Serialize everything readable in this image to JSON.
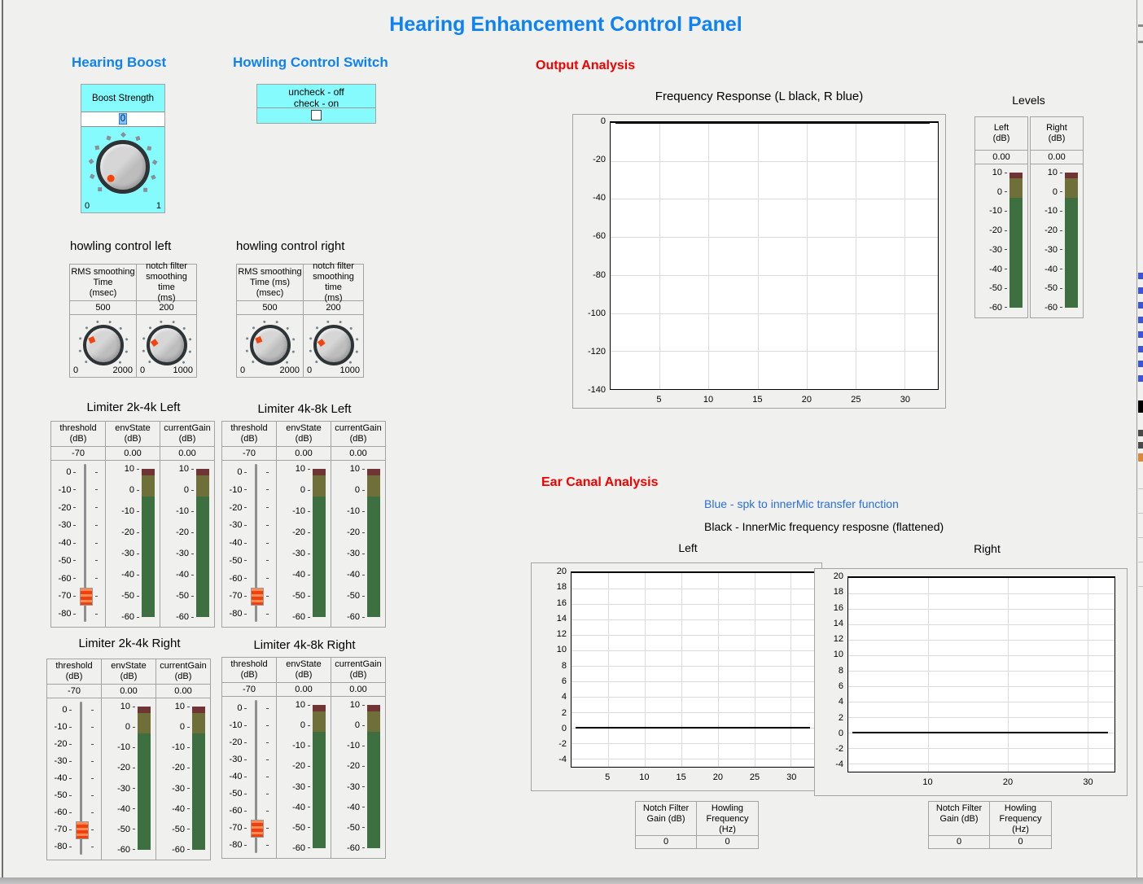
{
  "window": {
    "title": "Hearing Enhancement Control Panel"
  },
  "colors": {
    "accent_blue": "#0f82f2",
    "section_red": "#f00000",
    "panel_cyan": "#86fbfd",
    "meter_red": "#713434",
    "meter_olive": "#6f6f39",
    "meter_green": "#3e6f40"
  },
  "hearing_boost": {
    "header": "Hearing Boost",
    "label": "Boost Strength",
    "value": "0",
    "min_label": "0",
    "max_label": "1",
    "knob": {
      "value": 0,
      "min": 0,
      "max": 1,
      "ticks": 11
    }
  },
  "howling_switch": {
    "header": "Howling Control Switch",
    "caption": "uncheck - off\ncheck - on",
    "checked": false
  },
  "howling_control_left": {
    "title": "howling control left",
    "rms": {
      "label": "RMS smoothing\nTime\n(msec)",
      "value": "500",
      "min_label": "0",
      "max_label": "2000",
      "knob": {
        "value": 500,
        "min": 0,
        "max": 2000,
        "ticks": 10
      }
    },
    "notch": {
      "label": "notch filter\nsmoothing time\n(ms)",
      "value": "200",
      "min_label": "0",
      "max_label": "1000",
      "knob": {
        "value": 200,
        "min": 0,
        "max": 1000,
        "ticks": 10
      }
    }
  },
  "howling_control_right": {
    "title": "howling control right",
    "rms": {
      "label": "RMS smoothing\nTime (ms)\n(msec)",
      "value": "500",
      "min_label": "0",
      "max_label": "2000",
      "knob": {
        "value": 500,
        "min": 0,
        "max": 2000,
        "ticks": 10
      }
    },
    "notch": {
      "label": "notch filter\nsmoothing time\n(ms)",
      "value": "200",
      "min_label": "0",
      "max_label": "1000",
      "knob": {
        "value": 200,
        "min": 0,
        "max": 1000,
        "ticks": 10
      }
    }
  },
  "limiter_labels": {
    "threshold": "threshold\n(dB)",
    "envState": "envState\n(dB)",
    "currentGain": "currentGain\n(dB)"
  },
  "limiters": [
    {
      "title": "Limiter 2k-4k Left",
      "threshold": "-70",
      "envState": "0.00",
      "currentGain": "0.00"
    },
    {
      "title": "Limiter 4k-8k Left",
      "threshold": "-70",
      "envState": "0.00",
      "currentGain": "0.00"
    },
    {
      "title": "Limiter 2k-4k Right",
      "threshold": "-70",
      "envState": "0.00",
      "currentGain": "0.00"
    },
    {
      "title": "Limiter 4k-8k Right",
      "threshold": "-70",
      "envState": "0.00",
      "currentGain": "0.00"
    }
  ],
  "slider": {
    "value": -70,
    "min": -80,
    "max": 0
  },
  "slider_scale": [
    0,
    -10,
    -20,
    -30,
    -40,
    -50,
    -60,
    -70,
    -80
  ],
  "meter_scale": [
    10,
    0,
    -10,
    -20,
    -30,
    -40,
    -50,
    -60
  ],
  "meter": {
    "min": -60,
    "max": 10,
    "segments": [
      {
        "from": 10,
        "to": 7,
        "color": "#713434"
      },
      {
        "from": 7,
        "to": -3,
        "color": "#6f6f39"
      },
      {
        "from": -3,
        "to": -60,
        "color": "#3e6f40"
      }
    ]
  },
  "output_analysis": {
    "header": "Output Analysis",
    "chart": {
      "type": "line",
      "title": "Frequency Response (L black, R blue)",
      "ymin": -140,
      "ymax": 0,
      "yticks": [
        0,
        -20,
        -40,
        -60,
        -80,
        -100,
        -120,
        -140
      ],
      "xmin": 0,
      "xmax": 33.4,
      "xticks": [
        5,
        10,
        15,
        20,
        25,
        30
      ],
      "line_y": 0,
      "grid": true
    }
  },
  "levels": {
    "title": "Levels",
    "left": {
      "label": "Left\n(dB)",
      "value": "0.00"
    },
    "right": {
      "label": "Right\n(dB)",
      "value": "0.00"
    }
  },
  "ear_canal": {
    "header": "Ear Canal Analysis",
    "legend_blue": "Blue - spk to innerMic transfer function",
    "legend_black": "Black - InnerMic frequency resposne (flattened)",
    "left_chart": {
      "type": "line",
      "title": "Left",
      "ymin": -5,
      "ymax": 20,
      "yticks": [
        20,
        18,
        16,
        14,
        12,
        10,
        8,
        6,
        4,
        2,
        0,
        -2,
        -4
      ],
      "xmin": 0,
      "xmax": 33.4,
      "xticks": [
        5,
        10,
        15,
        20,
        25,
        30
      ],
      "line_y": 0,
      "grid": true
    },
    "right_chart": {
      "type": "line",
      "title": "Right",
      "ymin": -5,
      "ymax": 20,
      "yticks": [
        20,
        18,
        16,
        14,
        12,
        10,
        8,
        6,
        4,
        2,
        0,
        -2,
        -4
      ],
      "xmin": 0,
      "xmax": 33.4,
      "xticks": [
        10,
        20,
        30
      ],
      "line_y": 0,
      "grid": true
    },
    "left_indicators": {
      "notch_label": "Notch Filter\nGain (dB)",
      "notch_value": "0",
      "howling_label": "Howling\nFrequency\n(Hz)",
      "howling_value": "0"
    },
    "right_indicators": {
      "notch_label": "Notch Filter\nGain (dB)",
      "notch_value": "0",
      "howling_label": "Howling\nFrequency\n(Hz)",
      "howling_value": "0"
    }
  }
}
